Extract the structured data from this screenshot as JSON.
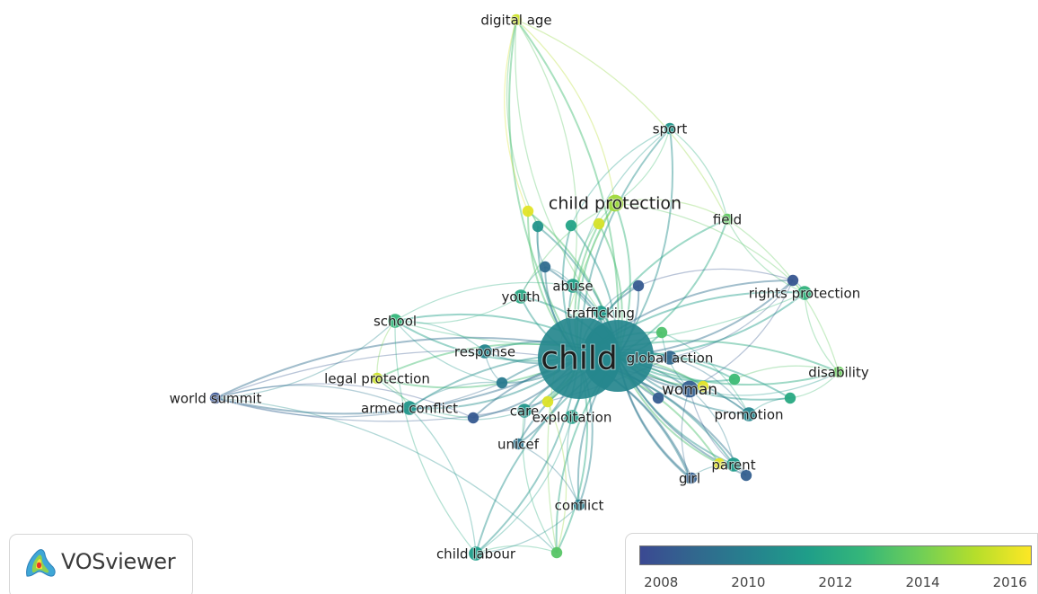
{
  "app": {
    "name": "VOSviewer"
  },
  "nodes": [
    {
      "id": "child",
      "label": "child",
      "weight": 10,
      "year": 2010.3
    },
    {
      "id": "child-2",
      "label": "",
      "weight": 8,
      "year": 2010.2
    },
    {
      "id": "child-protection",
      "label": "child protection",
      "weight": 4,
      "year": 2014.8
    },
    {
      "id": "woman",
      "label": "woman",
      "weight": 4,
      "year": 2008.4
    },
    {
      "id": "global-action",
      "label": "global action",
      "weight": 3,
      "year": 2008.8
    },
    {
      "id": "abuse",
      "label": "abuse",
      "weight": 3,
      "year": 2011.4
    },
    {
      "id": "trafficking",
      "label": "trafficking",
      "weight": 3,
      "year": 2011.2
    },
    {
      "id": "youth",
      "label": "youth",
      "weight": 3,
      "year": 2011.8
    },
    {
      "id": "school",
      "label": "school",
      "weight": 3,
      "year": 2012.6
    },
    {
      "id": "response",
      "label": "response",
      "weight": 3,
      "year": 2010.2
    },
    {
      "id": "legal-protection",
      "label": "legal protection",
      "weight": 2,
      "year": 2015.6
    },
    {
      "id": "armed-conflict",
      "label": "armed conflict",
      "weight": 3,
      "year": 2011.0
    },
    {
      "id": "world-summit",
      "label": "world summit",
      "weight": 2,
      "year": 2007.9
    },
    {
      "id": "care",
      "label": "care",
      "weight": 3,
      "year": 2011.0
    },
    {
      "id": "exploitation",
      "label": "exploitation",
      "weight": 3,
      "year": 2011.4
    },
    {
      "id": "unicef",
      "label": "unicef",
      "weight": 2,
      "year": 2009.4
    },
    {
      "id": "conflict",
      "label": "conflict",
      "weight": 2,
      "year": 2009.8
    },
    {
      "id": "child-labour",
      "label": "child labour",
      "weight": 3,
      "year": 2011.3
    },
    {
      "id": "promotion",
      "label": "promotion",
      "weight": 3,
      "year": 2010.2
    },
    {
      "id": "parent",
      "label": "parent",
      "weight": 3,
      "year": 2011.2
    },
    {
      "id": "girl",
      "label": "girl",
      "weight": 2,
      "year": 2009.4
    },
    {
      "id": "disability",
      "label": "disability",
      "weight": 2,
      "year": 2013.8
    },
    {
      "id": "rights-protection",
      "label": "rights protection",
      "weight": 3,
      "year": 2012.4
    },
    {
      "id": "field",
      "label": "field",
      "weight": 2,
      "year": 2013.6
    },
    {
      "id": "sport",
      "label": "sport",
      "weight": 2,
      "year": 2011.0
    },
    {
      "id": "digital-age",
      "label": "digital age",
      "weight": 2,
      "year": 2015.6
    },
    {
      "id": "n-yellow-1",
      "label": "",
      "weight": 2,
      "year": 2016.0
    },
    {
      "id": "n-teal-1",
      "label": "",
      "weight": 2,
      "year": 2010.8
    },
    {
      "id": "n-teal-2",
      "label": "",
      "weight": 2,
      "year": 2011.6
    },
    {
      "id": "n-yellow-2",
      "label": "",
      "weight": 2,
      "year": 2015.8
    },
    {
      "id": "n-blue-1",
      "label": "",
      "weight": 2,
      "year": 2009.0
    },
    {
      "id": "n-purple-1",
      "label": "",
      "weight": 2,
      "year": 2008.2
    },
    {
      "id": "n-purple-2",
      "label": "",
      "weight": 2,
      "year": 2008.0
    },
    {
      "id": "n-green-1",
      "label": "",
      "weight": 2,
      "year": 2013.2
    },
    {
      "id": "n-yellow-3",
      "label": "",
      "weight": 2,
      "year": 2015.9
    },
    {
      "id": "n-green-2",
      "label": "",
      "weight": 2,
      "year": 2012.8
    },
    {
      "id": "n-teal-3",
      "label": "",
      "weight": 2,
      "year": 2011.9
    },
    {
      "id": "n-purple-3",
      "label": "",
      "weight": 2,
      "year": 2008.2
    },
    {
      "id": "n-blue-2",
      "label": "",
      "weight": 2,
      "year": 2009.7
    },
    {
      "id": "n-purple-4",
      "label": "",
      "weight": 2,
      "year": 2008.3
    },
    {
      "id": "n-yellow-4",
      "label": "",
      "weight": 2,
      "year": 2016.0
    },
    {
      "id": "n-purple-5",
      "label": "",
      "weight": 2,
      "year": 2008.4
    },
    {
      "id": "n-green-3",
      "label": "",
      "weight": 2,
      "year": 2013.4
    },
    {
      "id": "n-yellow-5",
      "label": "",
      "weight": 2,
      "year": 2016.0
    },
    {
      "id": "n-purple-6",
      "label": "",
      "weight": 2,
      "year": 2008.4
    }
  ],
  "legend": {
    "scale_min": 2007.5,
    "scale_max": 2016.5,
    "ticks": [
      "2008",
      "2010",
      "2012",
      "2014",
      "2016"
    ],
    "colors": [
      "#3b4992",
      "#31688e",
      "#26828e",
      "#1f9e89",
      "#35b779",
      "#6ece58",
      "#b5de2b",
      "#fde725"
    ]
  }
}
